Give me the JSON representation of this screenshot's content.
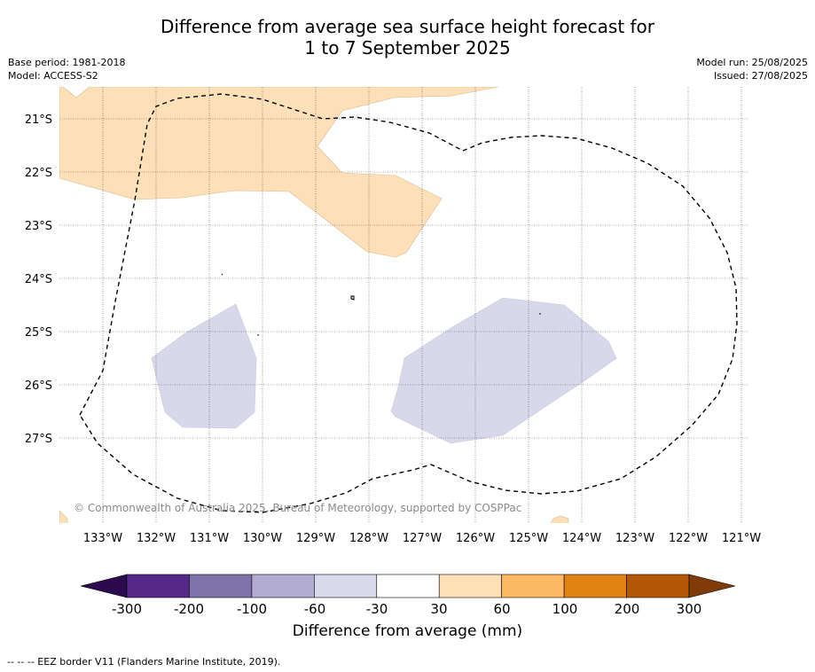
{
  "title": {
    "line1": "Difference from average sea surface height forecast for",
    "line2": "1 to 7 September 2025"
  },
  "meta": {
    "base_period": "Base period: 1981-2018",
    "model": "Model: ACCESS-S2",
    "model_run": "Model run: 25/08/2025",
    "issued": "Issued: 27/08/2025"
  },
  "map": {
    "copyright": "© Commonwealth of Australia 2025, Bureau of Meteorology, supported by COSPPac",
    "lat_labels": [
      "21°S",
      "22°S",
      "23°S",
      "24°S",
      "25°S",
      "26°S",
      "27°S"
    ],
    "lon_labels": [
      "133°W",
      "132°W",
      "131°W",
      "130°W",
      "129°W",
      "128°W",
      "127°W",
      "126°W",
      "125°W",
      "124°W",
      "123°W",
      "122°W",
      "121°W"
    ],
    "colors": {
      "positive_30_60": "#fde0b8",
      "negative_60_30": "#d8d8ea",
      "eez_border": "#000000"
    }
  },
  "colorbar": {
    "label": "Difference from average (mm)",
    "ticks": [
      "-300",
      "-200",
      "-100",
      "-60",
      "-30",
      "30",
      "60",
      "100",
      "200",
      "300"
    ],
    "colors": [
      "#2d0a4e",
      "#542788",
      "#8073ac",
      "#b2abd2",
      "#d8daeb",
      "#ffffff",
      "#fee0b6",
      "#fdb863",
      "#e08214",
      "#b35806",
      "#7f3b08"
    ]
  },
  "footnote": "--  --  -- EEZ border V11 (Flanders Marine Institute, 2019)."
}
